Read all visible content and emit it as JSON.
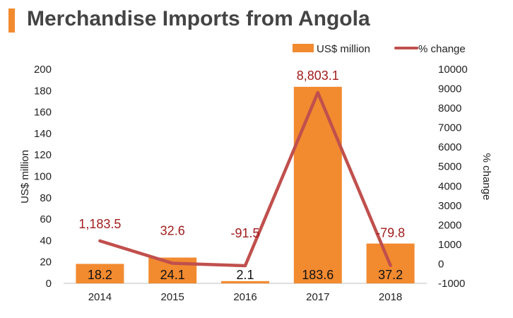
{
  "header": {
    "title": "Merchandise Imports from Angola"
  },
  "colors": {
    "accent": "#f28a30",
    "bar": "#f28a30",
    "line": "#c0504d",
    "pct_text": "#a11d1d"
  },
  "chart_data": {
    "type": "bar",
    "title": "Merchandise Imports from Angola",
    "categories": [
      "2014",
      "2015",
      "2016",
      "2017",
      "2018"
    ],
    "ylabel": "US$ million",
    "y2label": "% change",
    "ylim": [
      0,
      200
    ],
    "y2lim": [
      -1000,
      10000
    ],
    "yticks": [
      "0",
      "20",
      "40",
      "60",
      "80",
      "100",
      "120",
      "140",
      "160",
      "180",
      "200"
    ],
    "y2ticks": [
      "-1000",
      "0",
      "1000",
      "2000",
      "3000",
      "4000",
      "5000",
      "6000",
      "7000",
      "8000",
      "9000",
      "10000"
    ],
    "legend_position": "top-right",
    "series": [
      {
        "name": "US$ million",
        "type": "bar",
        "axis": "left",
        "values": [
          18.2,
          24.1,
          2.1,
          183.6,
          37.2
        ],
        "labels": [
          "18.2",
          "24.1",
          "2.1",
          "183.6",
          "37.2"
        ]
      },
      {
        "name": "% change",
        "type": "line",
        "axis": "right",
        "values": [
          1183.5,
          32.6,
          -91.5,
          8803.1,
          -79.8
        ],
        "labels": [
          "1,183.5",
          "32.6",
          "-91.5",
          "8,803.1",
          "-79.8"
        ]
      }
    ]
  }
}
